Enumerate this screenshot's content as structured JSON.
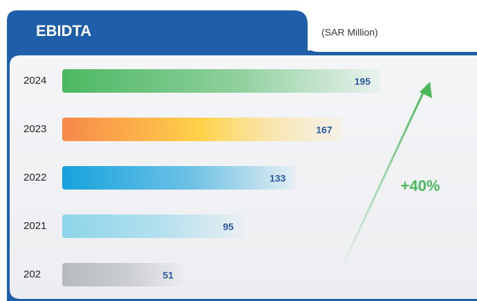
{
  "chart_data": {
    "type": "bar",
    "title": "EBIDTA",
    "subtitle": "(SAR Million)",
    "categories": [
      "2024",
      "2023",
      "2022",
      "2021",
      "202"
    ],
    "values": [
      195,
      167,
      133,
      95,
      51
    ],
    "colors": [
      "#4cb862",
      "#f7884a",
      "#16a2dc",
      "#8dd5ea",
      "#b6b9bd"
    ],
    "annotation": "+40%"
  }
}
